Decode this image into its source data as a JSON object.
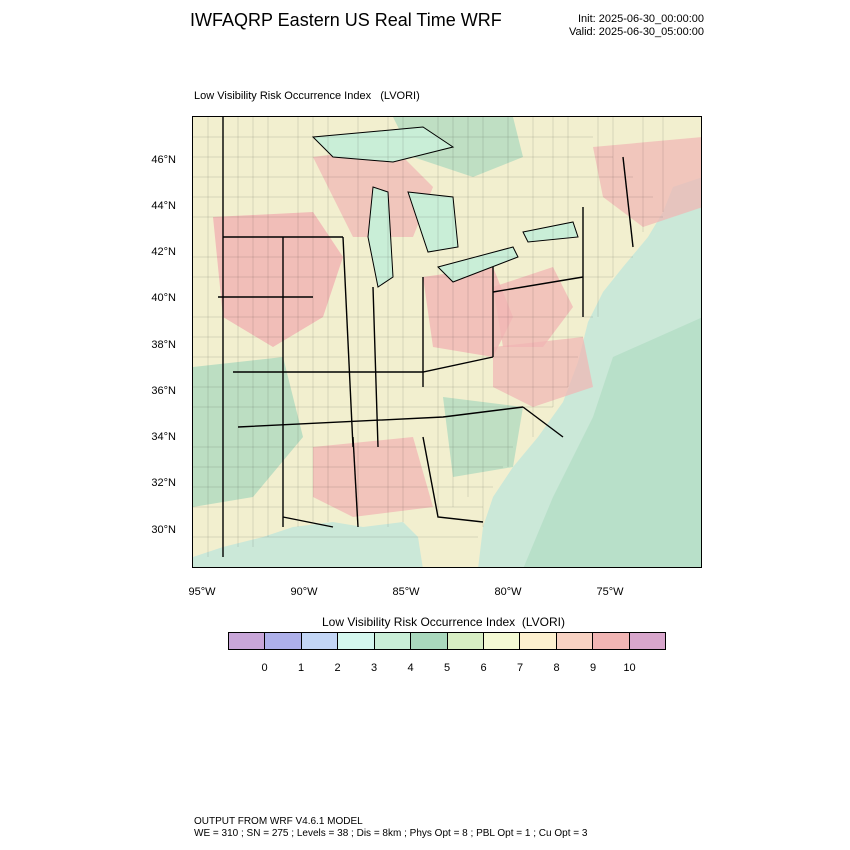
{
  "header": {
    "title": "IWFAQRP Eastern US Real Time WRF",
    "init": "Init: 2025-06-30_00:00:00",
    "valid": "Valid: 2025-06-30_05:00:00"
  },
  "map": {
    "subtitle": "Low Visibility Risk Occurrence Index   (LVORI)",
    "lat_ticks": [
      "46°N",
      "44°N",
      "42°N",
      "40°N",
      "38°N",
      "36°N",
      "34°N",
      "32°N",
      "30°N"
    ],
    "lon_ticks": [
      "95°W",
      "90°W",
      "85°W",
      "80°W",
      "75°W"
    ]
  },
  "colorbar": {
    "title": "Low Visibility Risk Occurrence Index  (LVORI)",
    "labels": [
      "0",
      "1",
      "2",
      "3",
      "4",
      "5",
      "6",
      "7",
      "8",
      "9",
      "10"
    ],
    "colors": [
      "#c9a6d9",
      "#aeb0ea",
      "#c3d6f6",
      "#d4f7ee",
      "#c9eed7",
      "#a9d8bd",
      "#d7eec4",
      "#f4fad4",
      "#fdf0cf",
      "#f8d2c3",
      "#f1b5b4",
      "#d8a6cc"
    ]
  },
  "footer": {
    "line1": "OUTPUT FROM WRF V4.6.1 MODEL",
    "line2": "WE = 310 ; SN = 275 ; Levels = 38 ; Dis = 8km ; Phys Opt = 8 ; PBL Opt = 1 ; Cu Opt = 3"
  }
}
